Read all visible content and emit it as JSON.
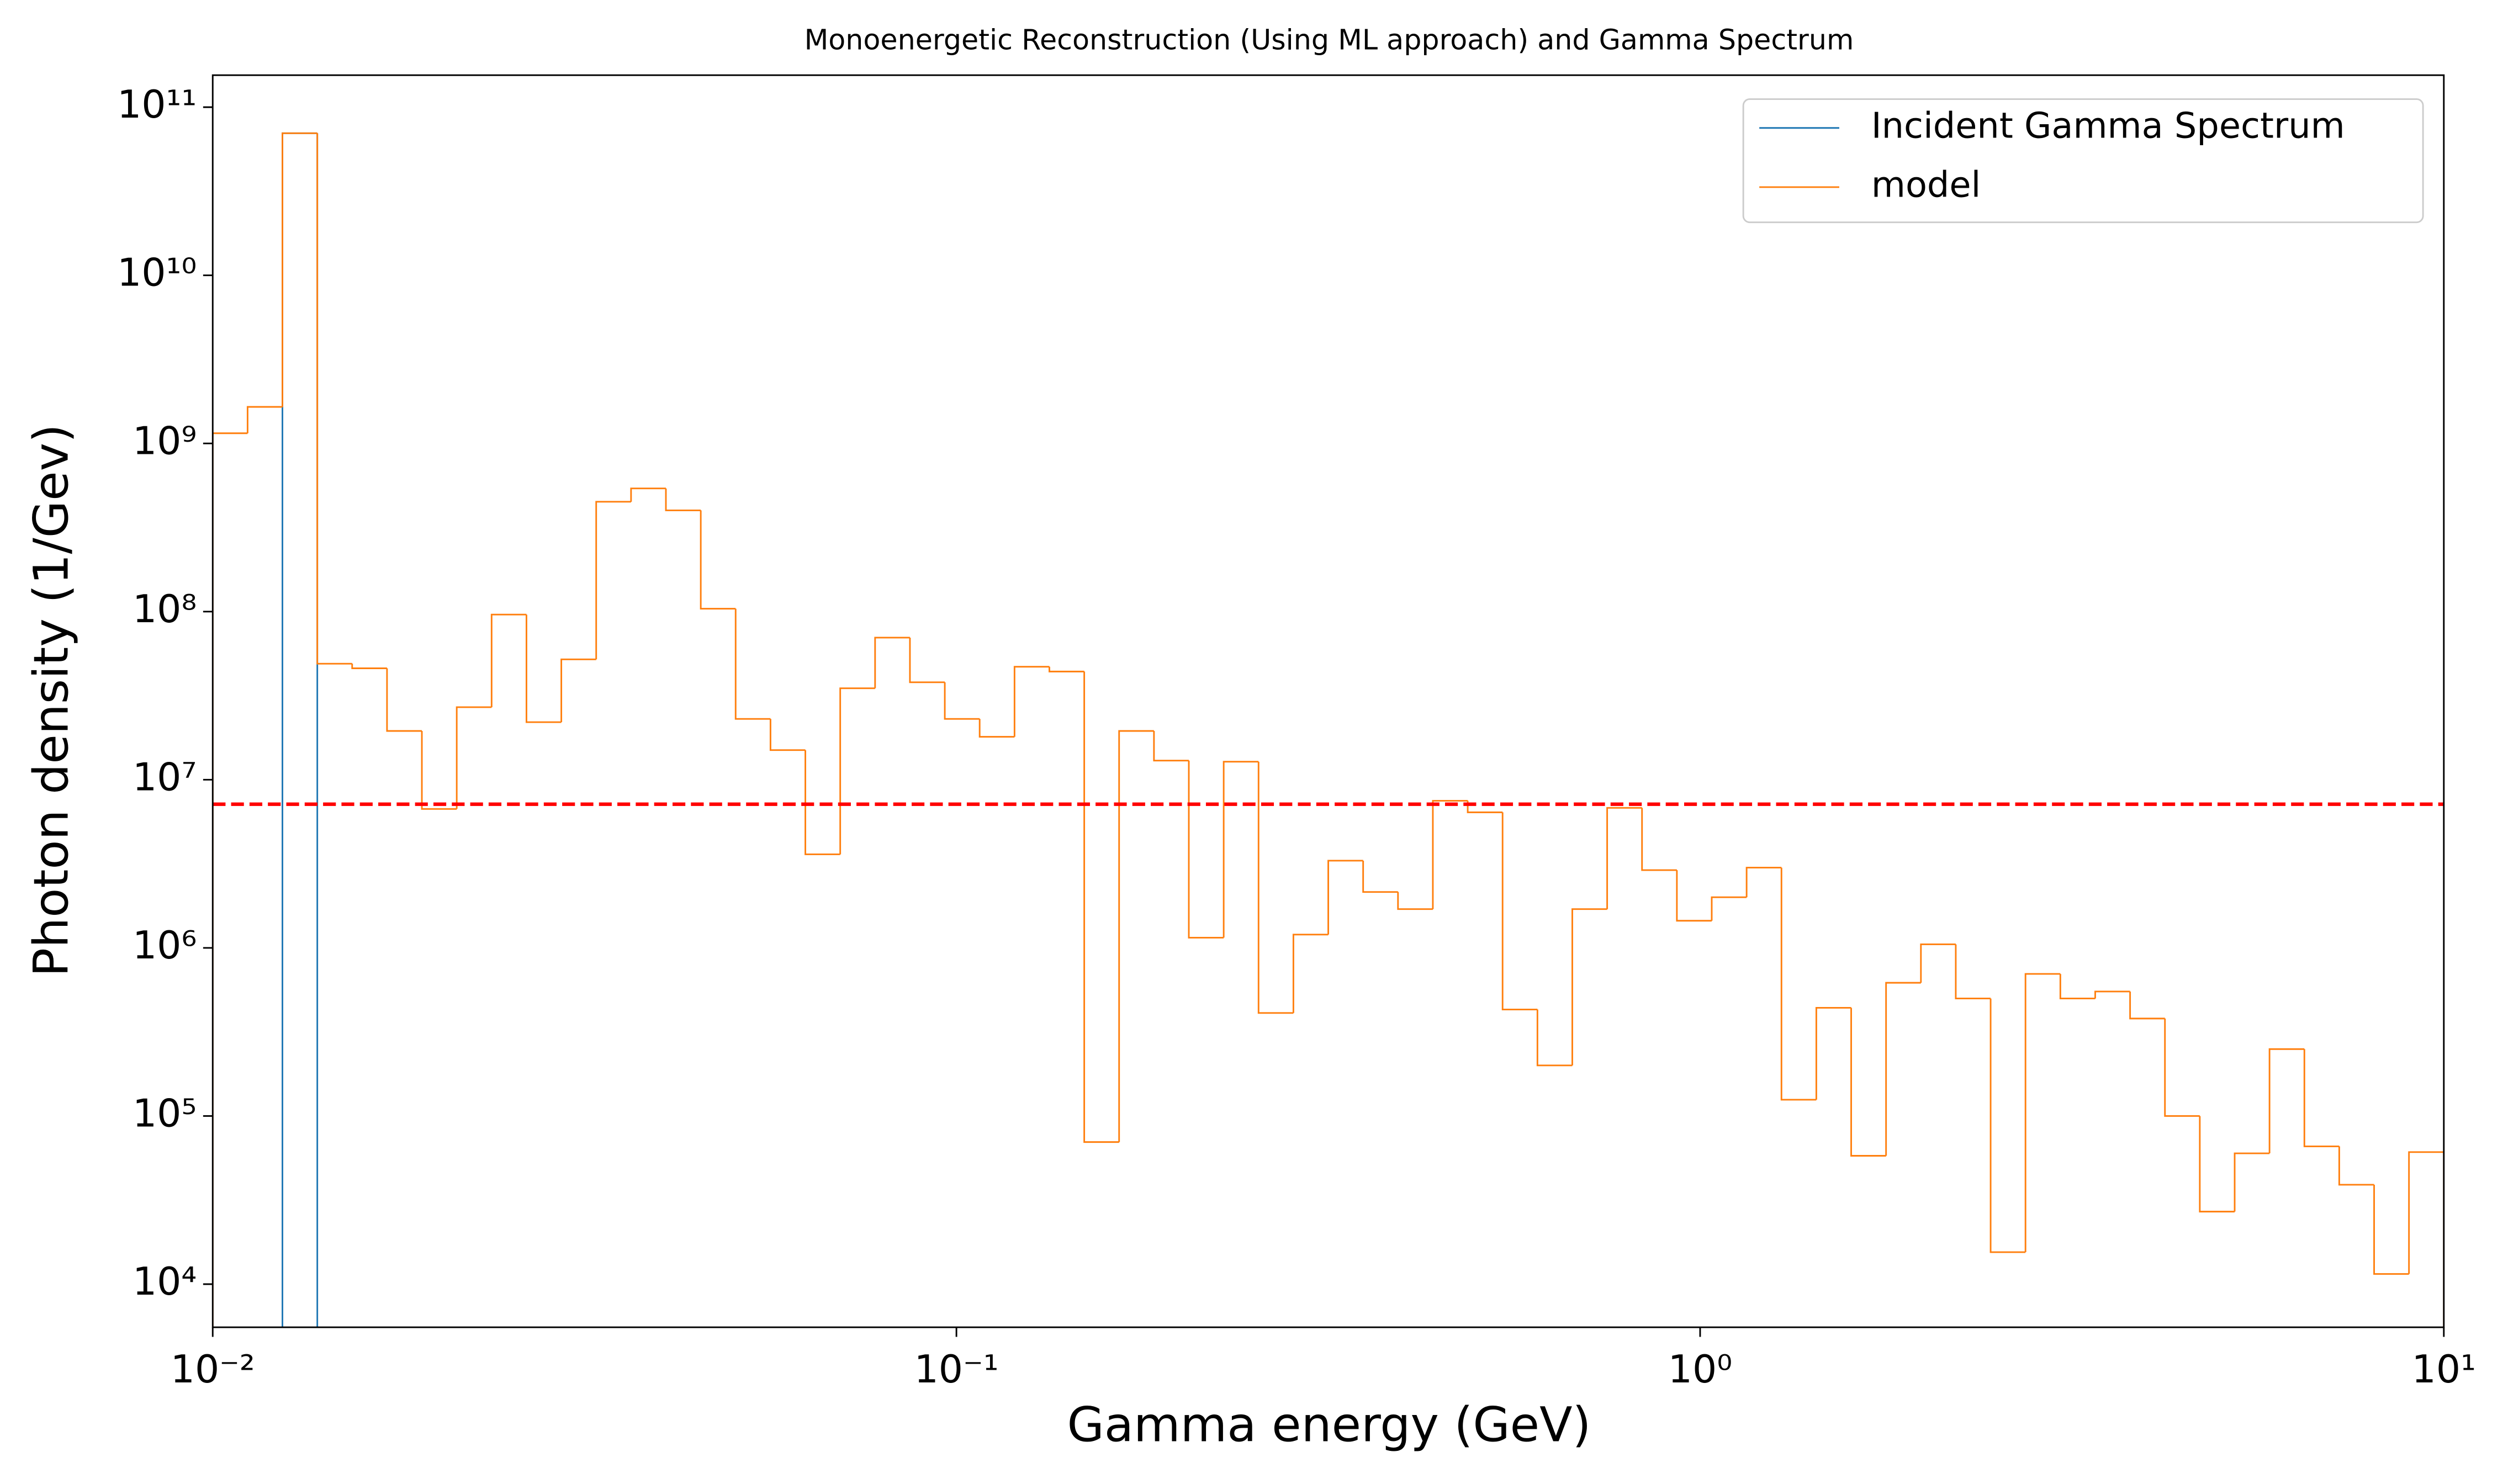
{
  "chart_data": {
    "type": "histogram",
    "title": "Monoenergetic Reconstruction (Using ML approach) and Gamma Spectrum",
    "x_label": "Gamma energy (GeV)",
    "y_label": "Photon density (1/Gev)",
    "x_log": true,
    "y_log": true,
    "xlim": [
      0.01,
      10
    ],
    "ylim": [
      5540,
      155000000000
    ],
    "xticks": [
      {
        "value": 0.01,
        "label": "10⁻²"
      },
      {
        "value": 0.1,
        "label": "10⁻¹"
      },
      {
        "value": 1,
        "label": "10⁰"
      },
      {
        "value": 10,
        "label": "10¹"
      }
    ],
    "yticks": [
      {
        "value": 10000,
        "label": "10⁴"
      },
      {
        "value": 100000,
        "label": "10⁵"
      },
      {
        "value": 1000000,
        "label": "10⁶"
      },
      {
        "value": 10000000,
        "label": "10⁷"
      },
      {
        "value": 100000000,
        "label": "10⁸"
      },
      {
        "value": 1000000000,
        "label": "10⁹"
      },
      {
        "value": 10000000000,
        "label": "10¹⁰"
      },
      {
        "value": 100000000000,
        "label": "10¹¹"
      }
    ],
    "legend": "upper right",
    "bins": [
      0.01,
      0.01114,
      0.012409,
      0.013824,
      0.015399,
      0.017154,
      0.019109,
      0.021287,
      0.023714,
      0.026416,
      0.029427,
      0.032781,
      0.036517,
      0.040679,
      0.045316,
      0.050481,
      0.056234,
      0.062643,
      0.069783,
      0.077737,
      0.086596,
      0.096466,
      0.10746,
      0.11971,
      0.13335,
      0.14855,
      0.16548,
      0.18434,
      0.20535,
      0.22876,
      0.25483,
      0.28387,
      0.31623,
      0.35227,
      0.39242,
      0.43714,
      0.48697,
      0.54247,
      0.6043,
      0.67317,
      0.74989,
      0.83536,
      0.93057,
      1.0366,
      1.1548,
      1.2864,
      1.433,
      1.5963,
      1.7783,
      1.981,
      2.2067,
      2.4582,
      2.7384,
      3.0505,
      3.3982,
      3.7855,
      4.217,
      4.6976,
      5.233,
      5.8294,
      6.4938,
      7.2339,
      8.0584,
      8.9769,
      10
    ],
    "series": [
      {
        "name": "Incident Gamma Spectrum",
        "color": "#1f77b4",
        "values": [
          0,
          0,
          70000000000,
          0,
          0,
          0,
          0,
          0,
          0,
          0,
          0,
          0,
          0,
          0,
          0,
          0,
          0,
          0,
          0,
          0,
          0,
          0,
          0,
          0,
          0,
          0,
          0,
          0,
          0,
          0,
          0,
          0,
          0,
          0,
          0,
          0,
          0,
          0,
          0,
          0,
          0,
          0,
          0,
          0,
          0,
          0,
          0,
          0,
          0,
          0,
          0,
          0,
          0,
          0,
          0,
          0,
          0,
          0,
          0,
          0,
          0,
          0,
          0,
          0
        ]
      },
      {
        "name": "model",
        "color": "#ff7f0e",
        "values": [
          1150000000,
          1650000000,
          70000000000,
          49000000,
          46000000,
          19500000,
          6700000,
          27000000,
          96000000,
          22000000,
          52000000,
          450000000,
          540000000,
          400000000,
          104000000,
          23000000,
          15000000,
          3600000,
          35000000,
          70000000,
          38000000,
          23000000,
          18000000,
          47000000,
          44000000,
          70000,
          19500000,
          13000000,
          1150000,
          12800000,
          410000,
          1200000,
          3300000,
          2150000,
          1700000,
          7500000,
          6400000,
          430000,
          200000,
          1700000,
          6800000,
          2900000,
          1450000,
          2000000,
          3000000,
          125000,
          440000,
          58000,
          620000,
          1050000,
          500000,
          15500,
          700000,
          500000,
          550000,
          380000,
          100000,
          27000,
          60000,
          250000,
          66000,
          39000,
          11500,
          61000
        ]
      }
    ],
    "reference_line": {
      "value": 7150000,
      "color": "#ff0000"
    }
  }
}
